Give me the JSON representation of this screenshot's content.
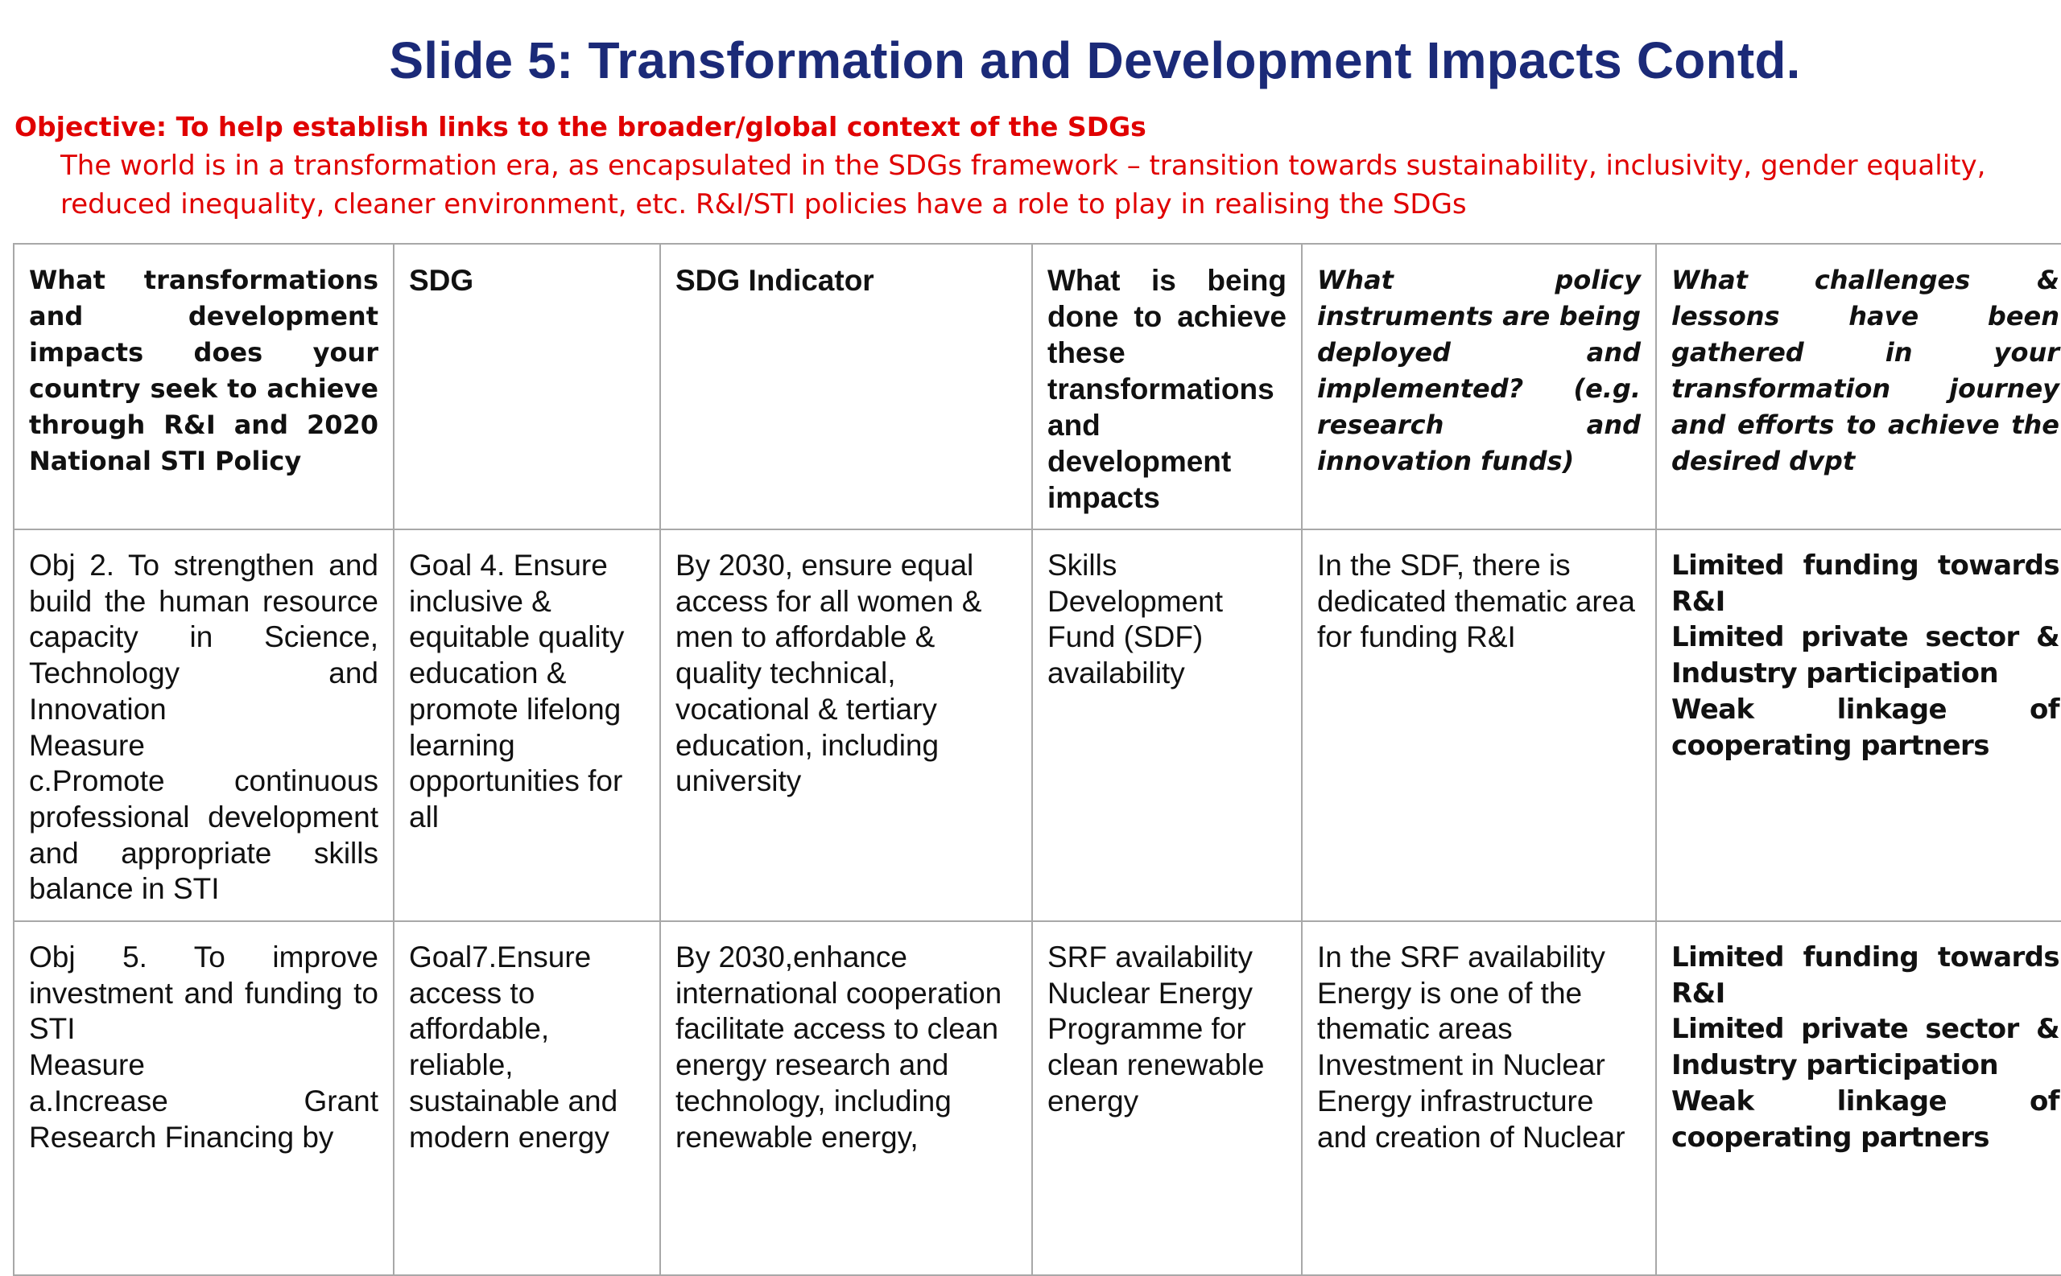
{
  "slide": {
    "title": "Slide 5: Transformation and Development Impacts Contd.",
    "objective": "Objective: To help establish links to the broader/global context of the SDGs",
    "intro": "The world is in a transformation era, as encapsulated in the SDGs framework – transition towards sustainability, inclusivity, gender equality, reduced inequality, cleaner environment, etc. R&I/STI policies have a role to play in realising the SDGs"
  },
  "table": {
    "headers": {
      "transformations": "What transformations and development impacts does your country seek to achieve through R&I and 2020 National STI Policy",
      "sdg": "SDG",
      "indicator": "SDG Indicator",
      "actions": "What is being done to achieve these transformations and development impacts",
      "instruments": "What policy instruments are being deployed and implemented? (e.g. research and innovation funds)",
      "challenges": "What challenges & lessons have been gathered in your transformation journey and efforts to achieve the desired dvpt"
    },
    "rows": [
      {
        "transformations": "Obj 2. To strengthen and build the human resource capacity in Science, Technology and Innovation",
        "transformations_measure": "Measure",
        "transformations_detail": "c.Promote continuous professional development and appropriate skills balance in STI",
        "sdg": "Goal 4. Ensure inclusive & equitable quality education & promote lifelong learning opportunities for all",
        "indicator": "By 2030, ensure equal access for all women & men to affordable & quality technical, vocational & tertiary education, including university",
        "actions": "Skills Development Fund (SDF) availability",
        "instruments": "In the SDF, there is dedicated thematic area for funding R&I",
        "challenges": [
          "Limited funding towards R&I",
          "Limited private sector & Industry participation",
          "Weak linkage of cooperating partners"
        ]
      },
      {
        "transformations": "Obj 5. To improve investment and funding to STI",
        "transformations_measure": "Measure",
        "transformations_detail": "a.Increase Grant Research Financing by",
        "sdg": "Goal7.Ensure access to affordable, reliable, sustainable and modern energy",
        "indicator": "By 2030,enhance international cooperation facilitate access to clean energy research and technology, including renewable energy,",
        "actions_1": "SRF availability",
        "actions_2": "Nuclear Energy Programme for clean renewable energy",
        "instruments_1": "In the SRF availability Energy is one of the thematic areas",
        "instruments_2": "Investment in Nuclear Energy infrastructure and creation of Nuclear",
        "challenges": [
          "Limited funding towards R&I",
          "Limited private sector & Industry participation",
          "Weak linkage of cooperating partners"
        ]
      }
    ]
  }
}
